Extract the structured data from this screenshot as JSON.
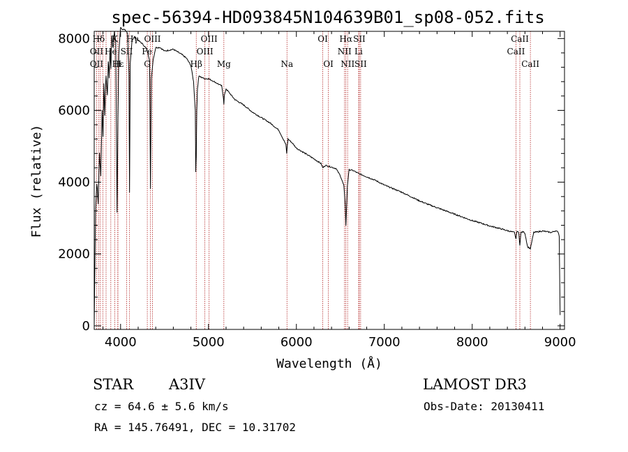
{
  "chart_data": {
    "type": "line",
    "title": "spec-56394-HD093845N104639B01_sp08-052.fits",
    "xlabel": "Wavelength (Å)",
    "ylabel": "Flux (relative)",
    "xlim": [
      3700,
      9050
    ],
    "ylim": [
      -100,
      8200
    ],
    "xticks": [
      4000,
      5000,
      6000,
      7000,
      8000,
      9000
    ],
    "xtick_labels": [
      "4000",
      "5000",
      "6000",
      "7000",
      "8000",
      "9000"
    ],
    "yticks": [
      0,
      2000,
      4000,
      6000,
      8000
    ],
    "ytick_labels": [
      "0",
      "2000",
      "4000",
      "6000",
      "8000"
    ],
    "grid": false,
    "series": [
      {
        "name": "flux",
        "x": [
          3700,
          3715,
          3730,
          3745,
          3760,
          3775,
          3790,
          3800,
          3810,
          3820,
          3835,
          3850,
          3860,
          3870,
          3880,
          3890,
          3900,
          3915,
          3930,
          3945,
          3960,
          3970,
          3980,
          4000,
          4020,
          4050,
          4080,
          4095,
          4102,
          4110,
          4130,
          4160,
          4200,
          4250,
          4300,
          4330,
          4340,
          4350,
          4370,
          4400,
          4450,
          4500,
          4600,
          4700,
          4750,
          4800,
          4830,
          4850,
          4855,
          4861,
          4867,
          4875,
          4890,
          4920,
          4960,
          5000,
          5050,
          5100,
          5150,
          5170,
          5175,
          5180,
          5200,
          5300,
          5400,
          5500,
          5600,
          5700,
          5800,
          5880,
          5890,
          5896,
          5905,
          5950,
          6000,
          6100,
          6200,
          6280,
          6300,
          6330,
          6400,
          6450,
          6500,
          6540,
          6555,
          6563,
          6571,
          6580,
          6600,
          6650,
          6700,
          6800,
          6900,
          7000,
          7100,
          7200,
          7300,
          7400,
          7500,
          7600,
          7700,
          7800,
          7900,
          8000,
          8100,
          8200,
          8300,
          8400,
          8480,
          8498,
          8510,
          8530,
          8542,
          8555,
          8580,
          8600,
          8630,
          8662,
          8700,
          8750,
          8800,
          8850,
          8900,
          8950,
          8980,
          8990,
          9000
        ],
        "y": [
          0,
          3200,
          4000,
          3400,
          4800,
          4200,
          6000,
          5300,
          6700,
          5900,
          7000,
          6400,
          7400,
          6900,
          7700,
          7200,
          8100,
          7700,
          8200,
          7900,
          3200,
          5800,
          7600,
          8300,
          8250,
          8250,
          8150,
          7000,
          3700,
          7300,
          7950,
          8050,
          7950,
          7850,
          7700,
          7400,
          3800,
          6900,
          7400,
          7750,
          7750,
          7650,
          7700,
          7550,
          7450,
          7250,
          6800,
          6000,
          4300,
          4700,
          6000,
          6600,
          6950,
          6920,
          6880,
          6880,
          6820,
          6750,
          6680,
          6350,
          6180,
          6400,
          6600,
          6300,
          6150,
          5950,
          5800,
          5650,
          5450,
          5050,
          4800,
          5000,
          5200,
          5100,
          4950,
          4800,
          4650,
          4520,
          4400,
          4470,
          4420,
          4380,
          4180,
          3900,
          3400,
          2800,
          3300,
          3900,
          4350,
          4320,
          4250,
          4150,
          4050,
          3920,
          3820,
          3720,
          3600,
          3480,
          3380,
          3290,
          3200,
          3110,
          3020,
          2930,
          2860,
          2780,
          2720,
          2650,
          2600,
          2420,
          2650,
          2580,
          2250,
          2600,
          2620,
          2580,
          2200,
          2150,
          2600,
          2620,
          2640,
          2620,
          2600,
          2650,
          2600,
          2500,
          300
        ]
      }
    ],
    "annotations": [
      {
        "text": "Hδ",
        "x": 3751,
        "y_row": 1
      },
      {
        "text": "K",
        "x": 3934,
        "y_row": 1
      },
      {
        "text": "Hγ",
        "x": 4135,
        "y_row": 1
      },
      {
        "text": "OIII",
        "x": 4363,
        "y_row": 1
      },
      {
        "text": "OIII",
        "x": 5007,
        "y_row": 1
      },
      {
        "text": "OI",
        "x": 6300,
        "y_row": 1
      },
      {
        "text": "Hα",
        "x": 6563,
        "y_row": 1
      },
      {
        "text": "SII",
        "x": 6716,
        "y_row": 1
      },
      {
        "text": "CaII",
        "x": 8542,
        "y_row": 1
      },
      {
        "text": "OII",
        "x": 3727,
        "y_row": 2
      },
      {
        "text": "He",
        "x": 3889,
        "y_row": 2
      },
      {
        "text": "SII",
        "x": 4069,
        "y_row": 2
      },
      {
        "text": "Fe",
        "x": 4300,
        "y_row": 2
      },
      {
        "text": "OIII",
        "x": 4959,
        "y_row": 2
      },
      {
        "text": "NII",
        "x": 6548,
        "y_row": 2
      },
      {
        "text": "Li",
        "x": 6708,
        "y_row": 2
      },
      {
        "text": "CaII",
        "x": 8498,
        "y_row": 2
      },
      {
        "text": "OII",
        "x": 3727,
        "y_row": 3
      },
      {
        "text": "Hε",
        "x": 3970,
        "y_row": 3
      },
      {
        "text": "H",
        "x": 3968,
        "y_row": 3
      },
      {
        "text": "G",
        "x": 4304,
        "y_row": 3
      },
      {
        "text": "Hβ",
        "x": 4861,
        "y_row": 3
      },
      {
        "text": "Mg",
        "x": 5175,
        "y_row": 3
      },
      {
        "text": "Na",
        "x": 5893,
        "y_row": 3
      },
      {
        "text": "OI",
        "x": 6364,
        "y_row": 3
      },
      {
        "text": "NII",
        "x": 6583,
        "y_row": 3
      },
      {
        "text": "SII",
        "x": 6731,
        "y_row": 3
      },
      {
        "text": "CaII",
        "x": 8662,
        "y_row": 3
      }
    ],
    "line_markers": [
      3727,
      3750,
      3770,
      3798,
      3835,
      3889,
      3934,
      3968,
      3970,
      4069,
      4102,
      4304,
      4340,
      4363,
      4861,
      4959,
      5007,
      5175,
      5893,
      6300,
      6364,
      6548,
      6563,
      6583,
      6708,
      6716,
      6731,
      8498,
      8542,
      8662
    ]
  },
  "info": {
    "object_label": "STAR",
    "spectral_class": "A3IV",
    "survey": "LAMOST DR3",
    "cz_text": "cz = 64.6 ± 5.6 km/s",
    "obs_date_text": "Obs-Date: 20130411",
    "coords_text": "RA = 145.76491, DEC =  10.31702"
  },
  "colors": {
    "axis": "#000000",
    "spectrum": "#000000",
    "marker": "#b22222",
    "background": "#ffffff"
  }
}
